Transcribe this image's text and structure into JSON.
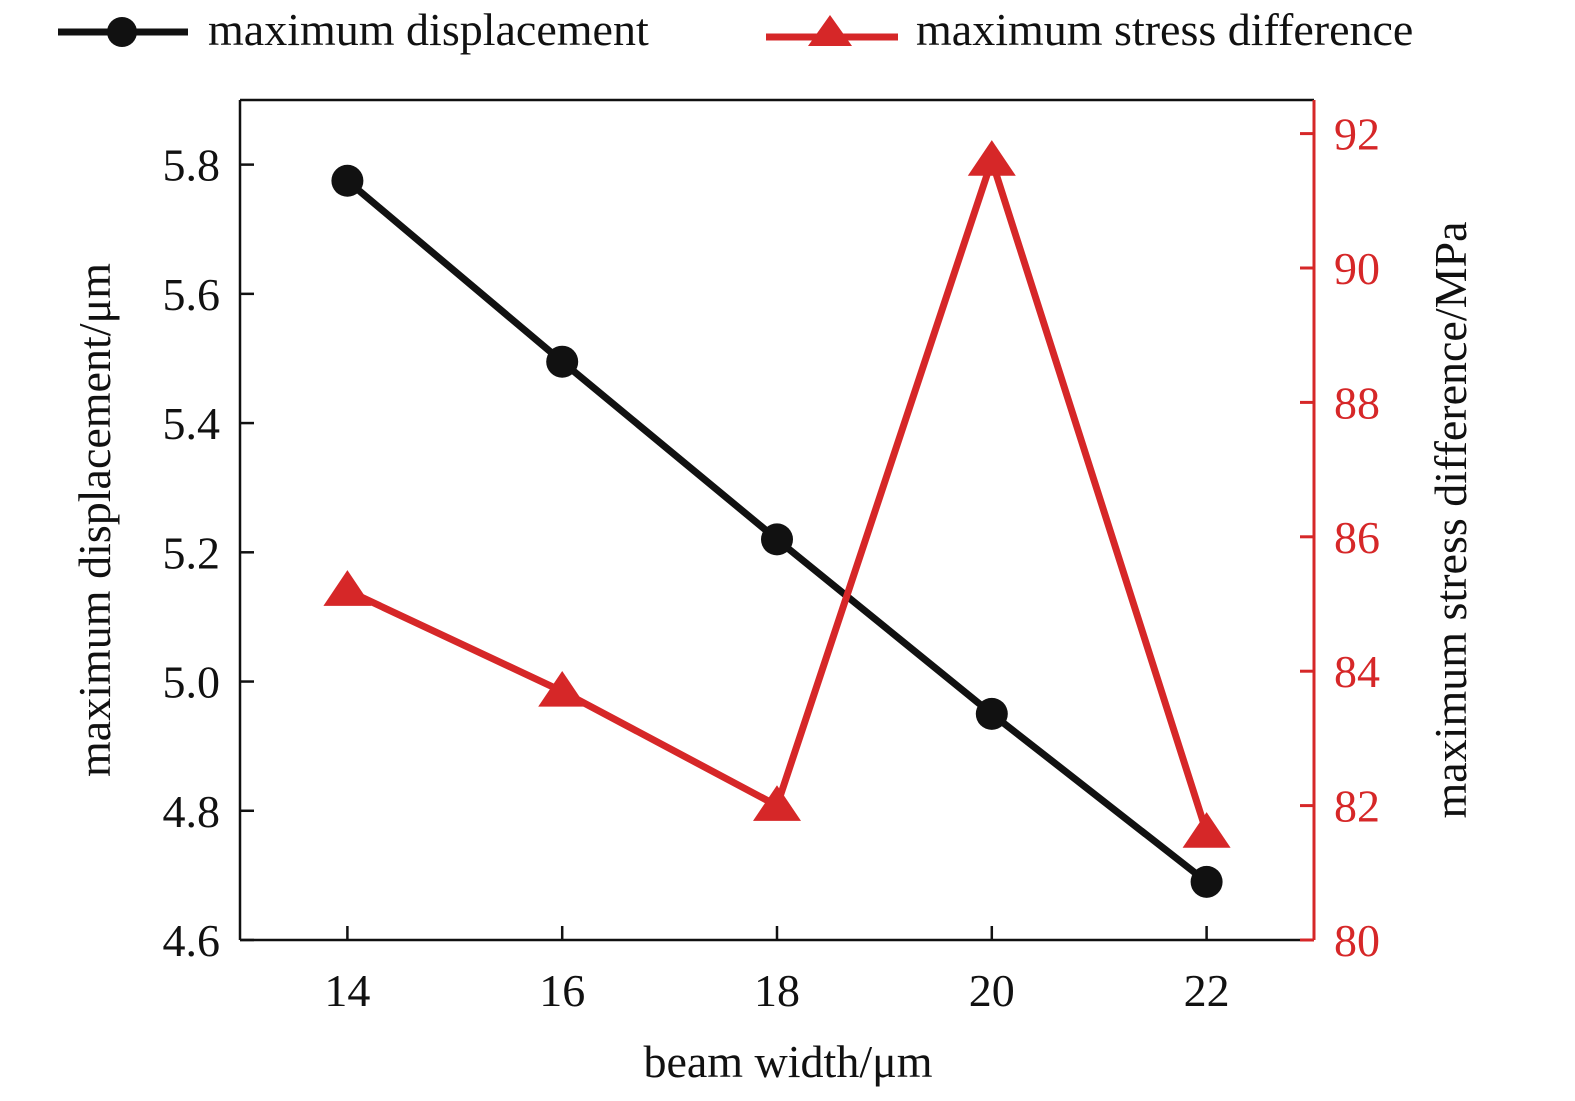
{
  "chart_data": {
    "type": "line",
    "x": [
      14,
      16,
      18,
      20,
      22
    ],
    "xlabel": "beam width/μm",
    "xlim": [
      13,
      23
    ],
    "xticks": [
      "14",
      "16",
      "18",
      "20",
      "22"
    ],
    "ylabel_left": "maximum displacement/μm",
    "ylim_left": [
      4.6,
      5.9
    ],
    "yticks_left": [
      "4.6",
      "4.8",
      "5.0",
      "5.2",
      "5.4",
      "5.6",
      "5.8"
    ],
    "ylabel_right": "maximum stress difference/MPa",
    "ylim_right": [
      80,
      92.5
    ],
    "yticks_right": [
      "80",
      "82",
      "84",
      "86",
      "88",
      "90",
      "92"
    ],
    "legend_position": "top",
    "grid": false,
    "series": [
      {
        "name": "maximum displacement",
        "axis": "left",
        "marker": "circle",
        "color": "#111111",
        "values": [
          5.775,
          5.495,
          5.22,
          4.95,
          4.69
        ]
      },
      {
        "name": "maximum stress difference",
        "axis": "right",
        "marker": "triangle",
        "color": "#d62728",
        "values": [
          85.2,
          83.7,
          82.0,
          91.6,
          81.6
        ]
      }
    ]
  }
}
